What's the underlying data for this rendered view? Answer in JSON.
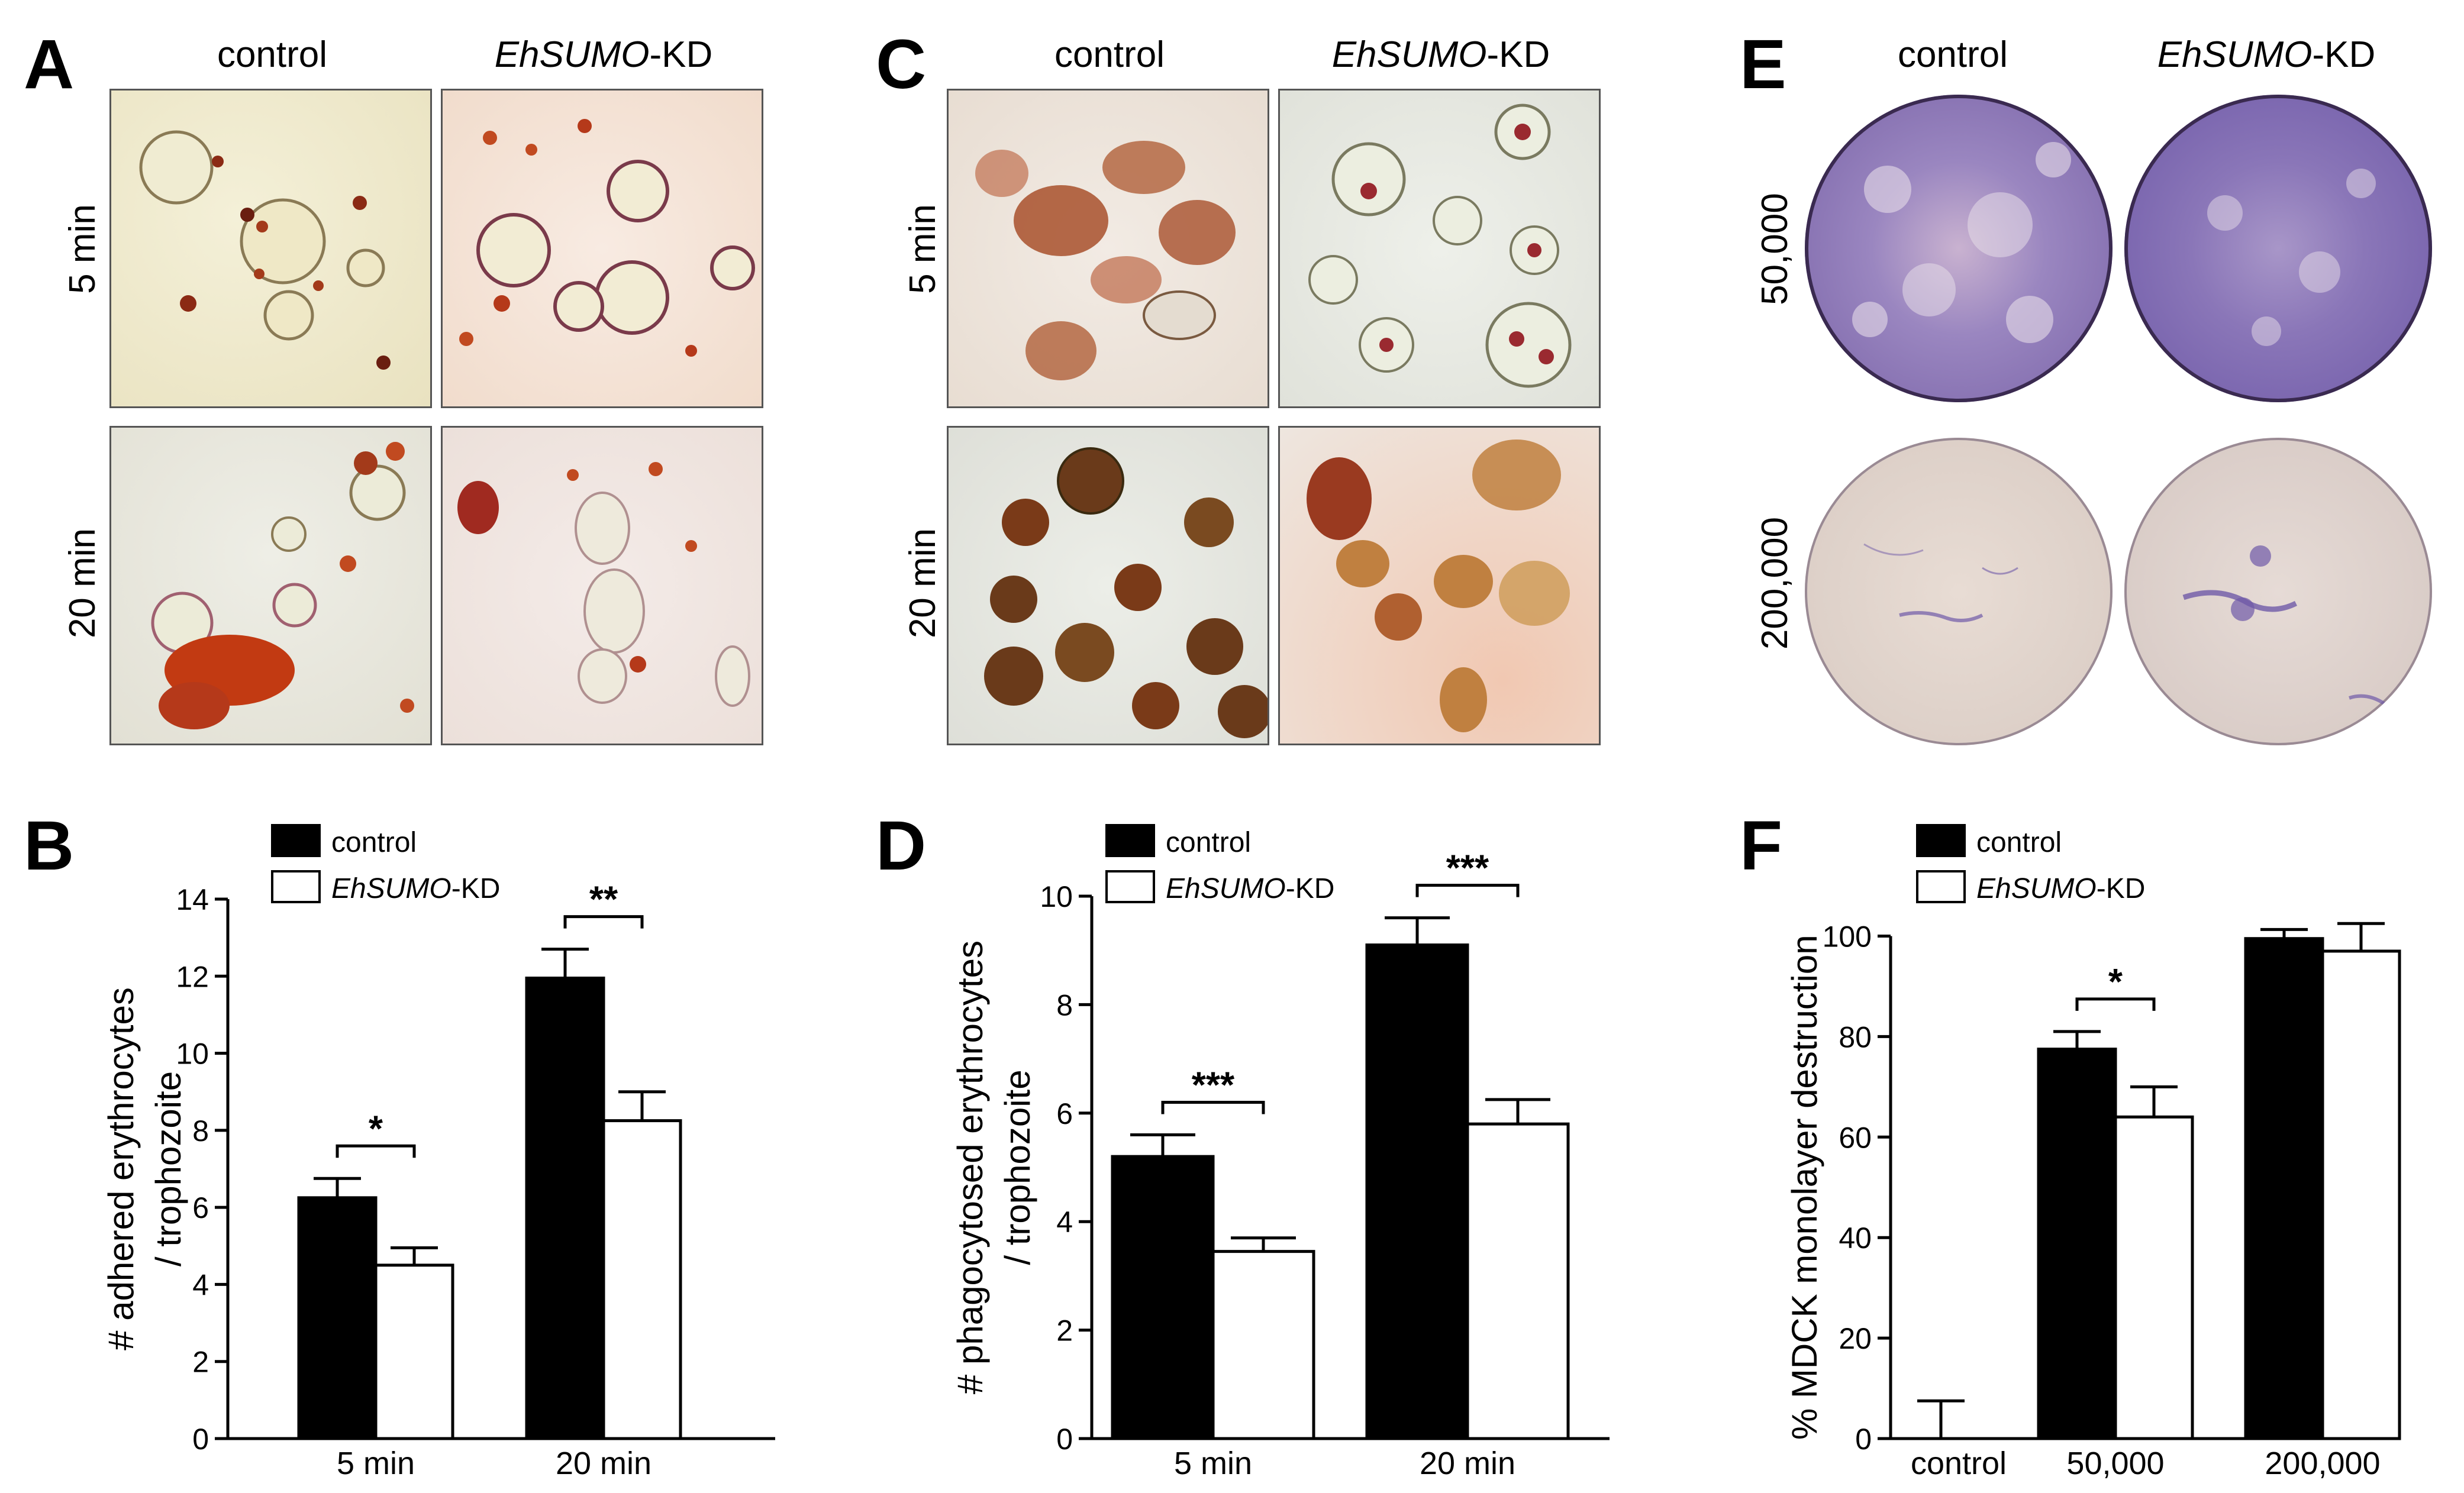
{
  "panel_A": {
    "letter": "A",
    "col_control": "control",
    "col_kd_italic": "EhSUMO",
    "col_kd_suffix": "-KD",
    "row_top": "5 min",
    "row_bottom": "20 min"
  },
  "panel_C": {
    "letter": "C",
    "col_control": "control",
    "col_kd_italic": "EhSUMO",
    "col_kd_suffix": "-KD",
    "row_top": "5 min",
    "row_bottom": "20 min"
  },
  "panel_E": {
    "letter": "E",
    "col_control": "control",
    "col_kd_italic": "EhSUMO",
    "col_kd_suffix": "-KD",
    "row_top": "50,000",
    "row_bottom": "200,000"
  },
  "colors": {
    "control_bar": "#000000",
    "kd_bar": "#ffffff",
    "stain_purple": "#6f5aa8",
    "erythrocyte_red": "#b5391a"
  },
  "chart_data": [
    {
      "panel": "B",
      "type": "bar",
      "title": "",
      "ylabel_line1": "# adhered erythrocytes",
      "ylabel_line2": "/ trophozoite",
      "xlabel": "",
      "categories": [
        "5 min",
        "20 min"
      ],
      "ylim": [
        0,
        14
      ],
      "yticks": [
        "0",
        "2",
        "4",
        "6",
        "8",
        "10",
        "12",
        "14"
      ],
      "legend_position": "top-left",
      "series": [
        {
          "name": "control",
          "values": [
            6.25,
            11.95
          ],
          "errors": [
            0.5,
            0.75
          ]
        },
        {
          "name_italic": "EhSUMO",
          "name_suffix": "-KD",
          "values": [
            4.5,
            8.25
          ],
          "errors": [
            0.45,
            0.75
          ]
        }
      ],
      "significance": [
        "*",
        "**"
      ]
    },
    {
      "panel": "D",
      "type": "bar",
      "title": "",
      "ylabel_line1": "# phagocytosed erythrocytes",
      "ylabel_line2": "/ trophozoite",
      "xlabel": "",
      "categories": [
        "5 min",
        "20 min"
      ],
      "ylim": [
        0,
        10
      ],
      "yticks": [
        "0",
        "2",
        "4",
        "6",
        "8",
        "10"
      ],
      "legend_position": "top-left",
      "series": [
        {
          "name": "control",
          "values": [
            5.2,
            9.1
          ],
          "errors": [
            0.4,
            0.5
          ]
        },
        {
          "name_italic": "EhSUMO",
          "name_suffix": "-KD",
          "values": [
            3.45,
            5.8
          ],
          "errors": [
            0.25,
            0.45
          ]
        }
      ],
      "significance": [
        "***",
        "***"
      ]
    },
    {
      "panel": "F",
      "type": "bar",
      "title": "",
      "ylabel_line1": "% MDCK monolayer destruction",
      "ylabel_line2": "",
      "xlabel": "",
      "categories": [
        "control",
        "50,000",
        "200,000"
      ],
      "ylim": [
        0,
        105
      ],
      "yticks": [
        "0",
        "20",
        "40",
        "60",
        "80",
        "100"
      ],
      "legend_position": "top-left",
      "series": [
        {
          "name": "control",
          "values": [
            0,
            77.5,
            99.5
          ],
          "errors": [
            7.5,
            3.5,
            1.8
          ]
        },
        {
          "name_italic": "EhSUMO",
          "name_suffix": "-KD",
          "values": [
            null,
            64,
            97
          ],
          "errors": [
            null,
            6,
            5.5
          ]
        }
      ],
      "significance": [
        "",
        "*",
        ""
      ]
    }
  ]
}
